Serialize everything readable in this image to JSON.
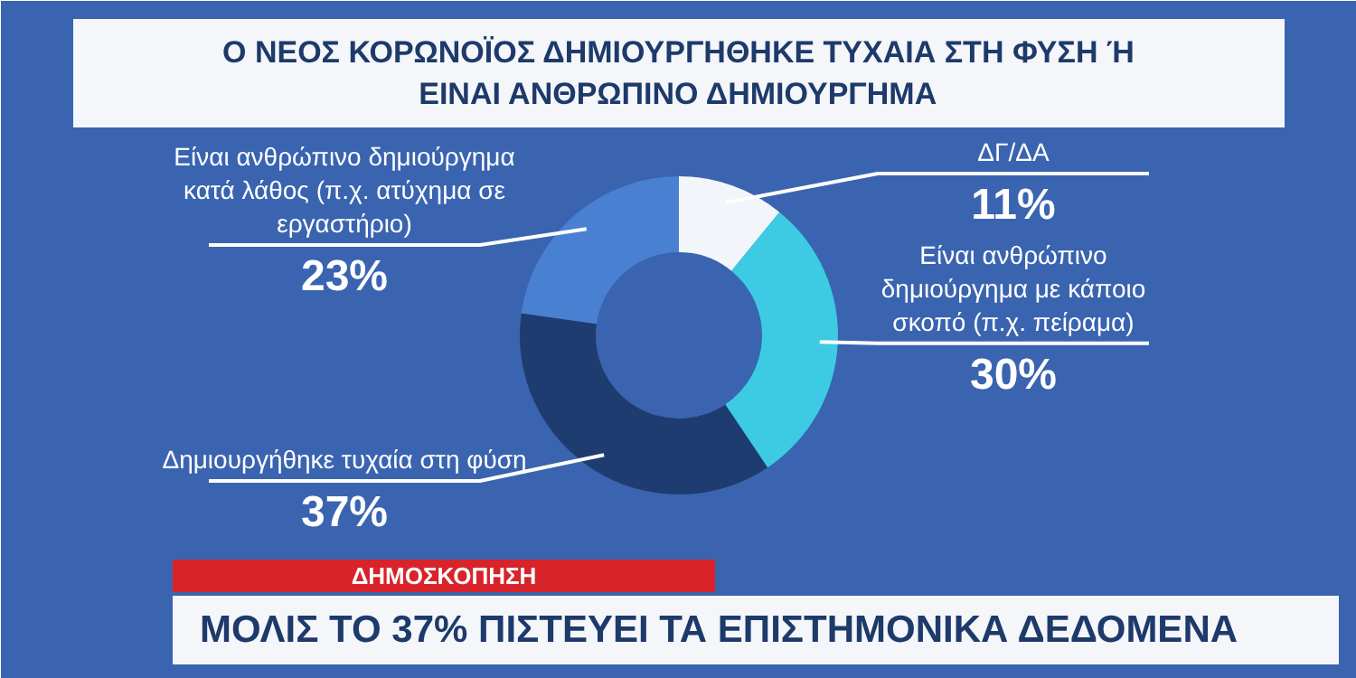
{
  "chart_data": {
    "type": "donut",
    "title": "Ο ΝΕΟΣ ΚΟΡΩΝΟΪΟΣ ΔΗΜΙΟΥΡΓΗΘΗΚΕ ΤΥΧΑΙΑ ΣΤΗ ΦΥΣΗ Ή ΕΙΝΑΙ ΑΝΘΡΩΠΙΝΟ ΔΗΜΙΟΥΡΓΗΜΑ",
    "categories": [
      "ΔΓ/ΔΑ",
      "Είναι ανθρώπινο δημιούργημα με κάποιο σκοπό (π.χ. πείραμα)",
      "Δημιουργήθηκε τυχαία στη φύση",
      "Είναι ανθρώπινο δημιούργημα κατά λάθος (π.χ. ατύχημα σε εργαστήριο)"
    ],
    "values": [
      11,
      30,
      37,
      23
    ],
    "value_labels": [
      "11%",
      "30%",
      "37%",
      "23%"
    ],
    "colors": [
      "#f2f5fa",
      "#3ccbe3",
      "#1f3c70",
      "#4a80d2"
    ],
    "annotations": [
      "ΔΗΜΟΣΚΟΠΗΣΗ",
      "ΜΟΛΙΣ ΤΟ 37% ΠΙΣΤΕΥΕΙ ΤΑ ΕΠΙΣΤΗΜΟΝΙΚΑ ΔΕΔΟΜΕΝΑ"
    ]
  }
}
